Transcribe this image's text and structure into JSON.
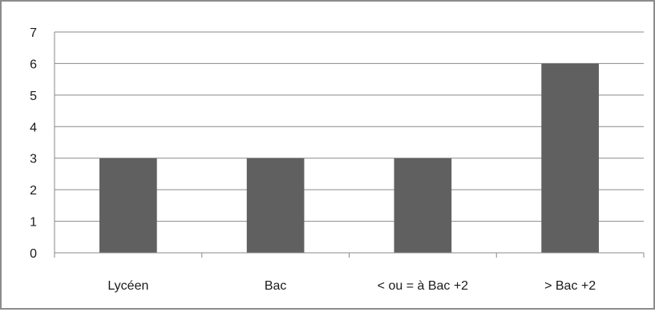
{
  "chart_data": {
    "type": "bar",
    "title": "",
    "xlabel": "",
    "ylabel": "",
    "categories": [
      "Lycéen",
      "Bac",
      "< ou = à Bac +2",
      "> Bac +2"
    ],
    "values": [
      3,
      3,
      3,
      6
    ],
    "ylim": [
      0,
      7
    ],
    "yticks": [
      0,
      1,
      2,
      3,
      4,
      5,
      6,
      7
    ],
    "grid": true,
    "legend": "none",
    "colors": {
      "bar": "#606060",
      "grid": "#8a8a8a",
      "axis": "#8a8a8a",
      "frame": "#8c8c8c"
    }
  }
}
